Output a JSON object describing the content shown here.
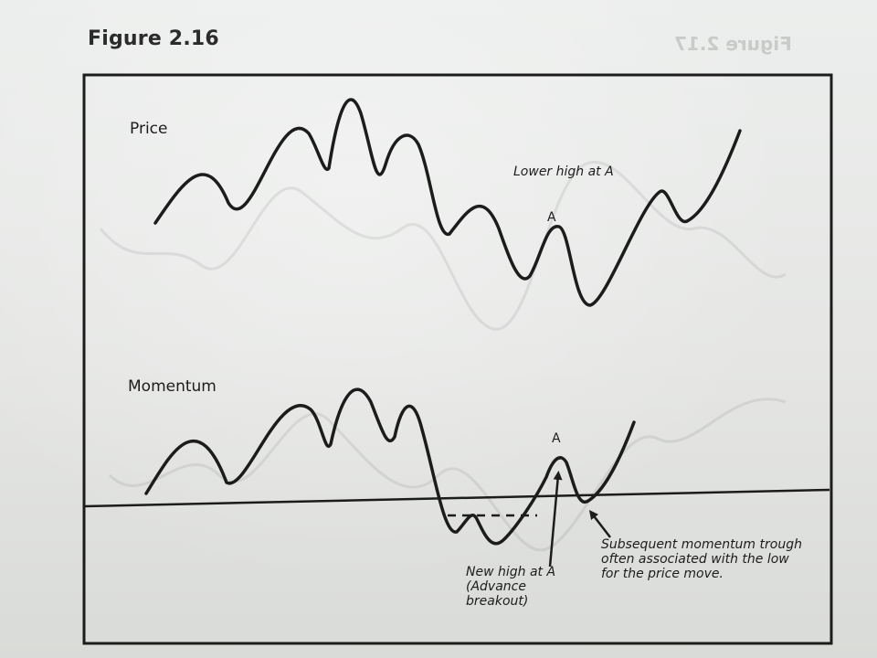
{
  "figure": {
    "title": "Figure 2.16",
    "ghost_title": "Figure 2.17"
  },
  "price_panel": {
    "label": "Price",
    "annotation": "Lower high at A",
    "point_label": "A"
  },
  "momentum_panel": {
    "label": "Momentum",
    "point_label": "A",
    "new_high_note": [
      "New high at A",
      "(Advance",
      "breakout)"
    ],
    "trough_note": [
      "Subsequent momentum trough",
      "often associated with the low",
      "for the price move."
    ]
  },
  "colors": {
    "ink": "#1c1c1c",
    "paper": "#e7e8e6",
    "ghost": "#c9cbc9"
  }
}
